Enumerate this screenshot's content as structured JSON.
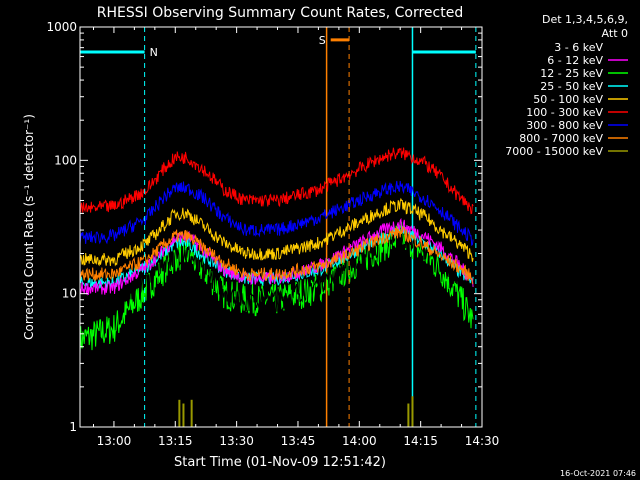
{
  "chart_data": {
    "type": "line",
    "title": "RHESSI Observing Summary Count Rates, Corrected",
    "xlabel": "Start Time (01-Nov-09 12:51:42)",
    "ylabel": "Corrected Count Rate (s⁻¹ detector⁻¹)",
    "yscale": "log",
    "xlim": [
      "12:51:42",
      "14:30:00"
    ],
    "ylim": [
      1,
      1000
    ],
    "x_tick_labels": [
      "13:00",
      "13:15",
      "13:30",
      "13:45",
      "14:00",
      "14:15",
      "14:30"
    ],
    "y_tick_labels": [
      "1",
      "10",
      "100",
      "1000"
    ],
    "legend": {
      "placement": "right",
      "header": [
        "Det 1,3,4,5,6,9,",
        "Att 0"
      ]
    },
    "x_sample_times": [
      "12:51:42",
      "13:00",
      "13:08",
      "13:12",
      "13:15",
      "13:18",
      "13:22",
      "13:27",
      "13:32",
      "13:40",
      "13:50",
      "13:58",
      "14:04",
      "14:08",
      "14:10",
      "14:12",
      "14:16",
      "14:20",
      "14:24",
      "14:28"
    ],
    "series": [
      {
        "name": "3 - 6 keV",
        "color": "#000000",
        "values": [
          10,
          9.5,
          13,
          17,
          20,
          20,
          15,
          11,
          9,
          9,
          12,
          17,
          22,
          27,
          28,
          26,
          22,
          18,
          14,
          10
        ]
      },
      {
        "name": "6 - 12 keV",
        "color": "#ff00ff",
        "values": [
          11,
          11,
          16,
          21,
          26,
          27,
          21,
          15,
          13,
          13,
          16,
          22,
          28,
          32,
          33,
          31,
          27,
          22,
          17,
          12
        ]
      },
      {
        "name": "12 - 25 keV",
        "color": "#00ff00",
        "values": [
          4.5,
          5.5,
          11,
          15,
          19,
          20,
          15,
          10,
          9,
          9,
          11,
          16,
          21,
          25,
          27,
          25,
          20,
          15,
          10,
          6
        ]
      },
      {
        "name": "25 - 50 keV",
        "color": "#00ffff",
        "values": [
          12,
          12,
          16,
          20,
          24,
          24,
          19,
          15,
          13,
          13,
          15,
          20,
          25,
          29,
          30,
          28,
          24,
          20,
          15,
          12
        ]
      },
      {
        "name": "50 - 100 keV",
        "color": "#ffcc00",
        "values": [
          18,
          18,
          24,
          32,
          40,
          40,
          32,
          24,
          20,
          20,
          24,
          32,
          40,
          45,
          46,
          44,
          38,
          30,
          24,
          19
        ]
      },
      {
        "name": "100 - 300 keV",
        "color": "#ff0000",
        "values": [
          43,
          45,
          60,
          85,
          105,
          105,
          85,
          60,
          50,
          50,
          60,
          80,
          100,
          112,
          113,
          110,
          95,
          75,
          55,
          42
        ]
      },
      {
        "name": "300 - 800 keV",
        "color": "#0000ff",
        "values": [
          26,
          27,
          37,
          52,
          62,
          62,
          52,
          37,
          30,
          30,
          37,
          47,
          57,
          62,
          63,
          60,
          52,
          42,
          32,
          25
        ]
      },
      {
        "name": "800 - 7000 keV",
        "color": "#ff8000",
        "values": [
          14,
          14,
          18,
          23,
          27,
          27,
          22,
          17,
          14,
          14,
          16,
          20,
          25,
          28,
          29,
          27,
          23,
          19,
          16,
          13
        ]
      },
      {
        "name": "7000 - 15000 keV",
        "color": "#999900",
        "spikes": [
          [
            "13:16",
            1.6
          ],
          [
            "13:17",
            1.5
          ],
          [
            "13:19",
            1.6
          ],
          [
            "14:12",
            1.5
          ],
          [
            "14:13",
            1.7
          ]
        ]
      }
    ],
    "flags": [
      {
        "label": "N",
        "color": "#00ffff",
        "value": 650,
        "start": "12:51:42",
        "end": "13:07:30",
        "boundary": "13:07:30"
      },
      {
        "label": "N",
        "color": "#00ffff",
        "value": 650,
        "start": "14:13:00",
        "end": "14:28:30",
        "boundary": "14:28:30"
      },
      {
        "label": "S",
        "color": "#ff8000",
        "value": 800,
        "start": "13:53",
        "end": "13:57:30",
        "boundary": "13:57:30"
      }
    ],
    "markers": [
      {
        "time": "13:52",
        "color": "#ff8000"
      },
      {
        "time": "14:13",
        "color": "#00ffff"
      }
    ]
  },
  "footer": {
    "date_stamp": "16-Oct-2021 07:46"
  }
}
